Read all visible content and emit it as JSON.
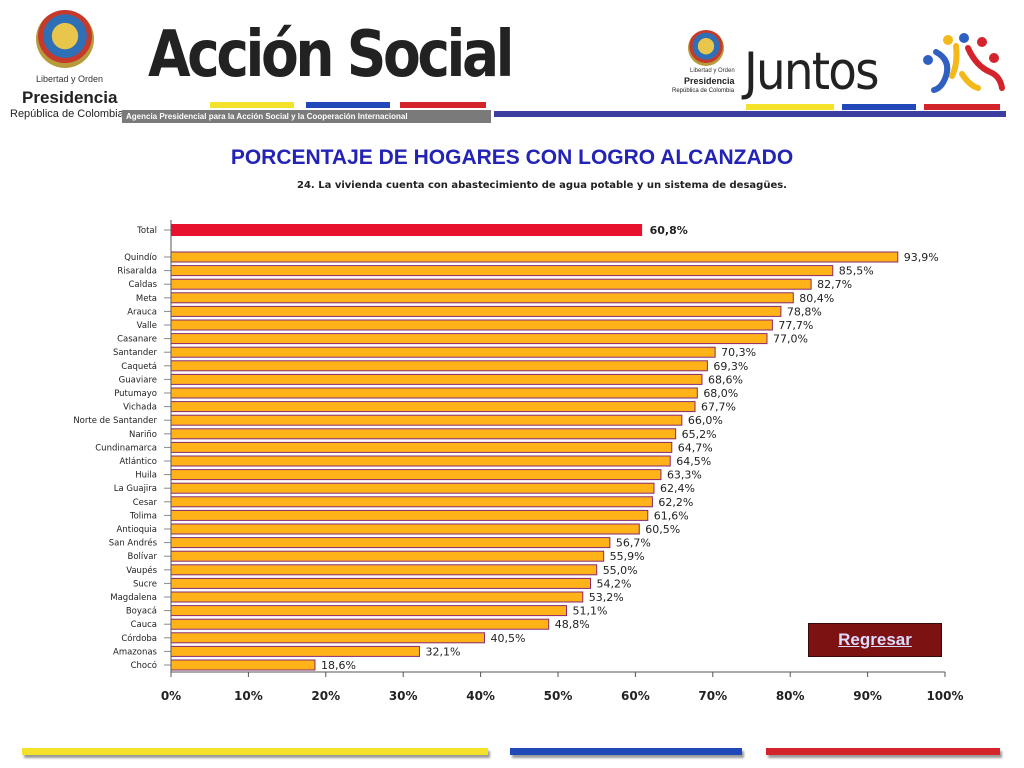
{
  "header": {
    "left_lema": "Libertad y Orden",
    "left_presidencia": "Presidencia",
    "left_republica": "República de Colombia",
    "brand_title": "Acción Social",
    "agency_text": "Agencia Presidencial para la Acción Social y la Cooperación Internacional",
    "right_lema": "Libertad y Orden",
    "right_presidencia": "Presidencia",
    "right_republica": "República de Colombia",
    "juntos": "Juntos"
  },
  "colors": {
    "title_blue": "#2323b5",
    "bar_fill": "#ffb319",
    "bar_border": "#8a2870",
    "total_fill": "#e8112d",
    "stripe_yellow": "#f3e12a",
    "stripe_blue": "#2148b8",
    "stripe_red": "#d3242b"
  },
  "main_title": "PORCENTAJE DE HOGARES CON LOGRO ALCANZADO",
  "subtitle": "24. La vivienda cuenta con abastecimiento de agua potable y un sistema de desagües.",
  "regresar_label": "Regresar",
  "chart_data": {
    "type": "bar",
    "orientation": "horizontal",
    "title": "24. La vivienda cuenta con abastecimiento de agua potable y un sistema de desagües.",
    "xlim": [
      0,
      100
    ],
    "ticks": [
      "0%",
      "10%",
      "20%",
      "30%",
      "40%",
      "50%",
      "60%",
      "70%",
      "80%",
      "90%",
      "100%"
    ],
    "total": {
      "category": "Total",
      "value": 60.8,
      "label": "60,8%"
    },
    "categories": [
      "Quindío",
      "Risaralda",
      "Caldas",
      "Meta",
      "Arauca",
      "Valle",
      "Casanare",
      "Santander",
      "Caquetá",
      "Guaviare",
      "Putumayo",
      "Vichada",
      "Norte de Santander",
      "Nariño",
      "Cundinamarca",
      "Atlántico",
      "Huila",
      "La Guajira",
      "Cesar",
      "Tolima",
      "Antioquia",
      "San Andrés",
      "Bolívar",
      "Vaupés",
      "Sucre",
      "Magdalena",
      "Boyacá",
      "Cauca",
      "Córdoba",
      "Amazonas",
      "Chocó"
    ],
    "values": [
      93.9,
      85.5,
      82.7,
      80.4,
      78.8,
      77.7,
      77.0,
      70.3,
      69.3,
      68.6,
      68.0,
      67.7,
      66.0,
      65.2,
      64.7,
      64.5,
      63.3,
      62.4,
      62.2,
      61.6,
      60.5,
      56.7,
      55.9,
      55.0,
      54.2,
      53.2,
      51.1,
      48.8,
      40.5,
      32.1,
      18.6
    ],
    "labels": [
      "93,9%",
      "85,5%",
      "82,7%",
      "80,4%",
      "78,8%",
      "77,7%",
      "77,0%",
      "70,3%",
      "69,3%",
      "68,6%",
      "68,0%",
      "67,7%",
      "66,0%",
      "65,2%",
      "64,7%",
      "64,5%",
      "63,3%",
      "62,4%",
      "62,2%",
      "61,6%",
      "60,5%",
      "56,7%",
      "55,9%",
      "55,0%",
      "54,2%",
      "53,2%",
      "51,1%",
      "48,8%",
      "40,5%",
      "32,1%",
      "18,6%"
    ],
    "grid": false,
    "legend": "none"
  }
}
